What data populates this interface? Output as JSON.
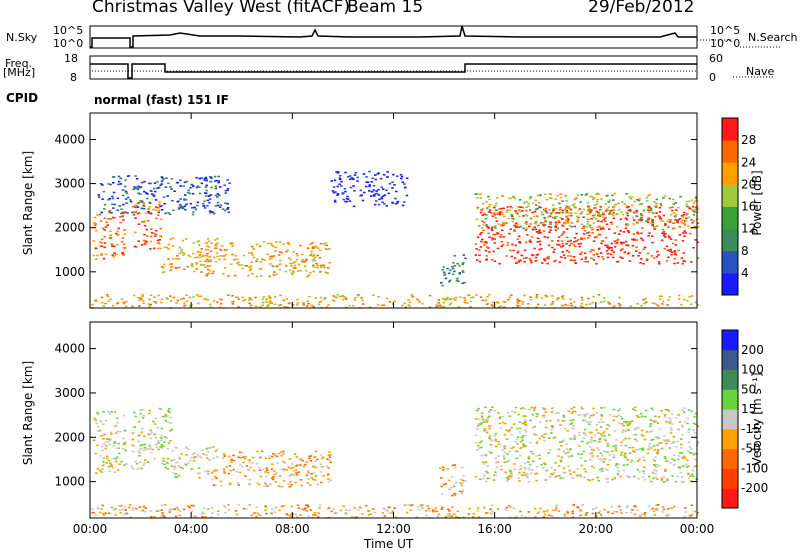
{
  "header": {
    "station": "Christmas Valley West (fitACF)",
    "beam": "Beam 15",
    "date": "29/Feb/2012"
  },
  "panels": {
    "nsky_label": "N.Sky",
    "nsky_ticks": [
      "10^5",
      "10^0"
    ],
    "nsearch_label": "N.Search",
    "nsearch_ticks": [
      "10^5",
      "10^0"
    ],
    "freq_label_1": "Freq.",
    "freq_label_2": "[MHz]",
    "freq_ticks": [
      "18",
      "8"
    ],
    "nave_label": "Nave",
    "nave_ticks": [
      "60",
      "0"
    ],
    "cpid_label": "CPID",
    "cpid_value": "normal (fast) 151 IF"
  },
  "chart_data": [
    {
      "type": "heatmap",
      "name": "power",
      "ylabel": "Slant Range [km]",
      "xlabel": "Time UT",
      "xlim": [
        0,
        24
      ],
      "ylim": [
        180,
        4600
      ],
      "x_ticks": [
        "00:00",
        "04:00",
        "08:00",
        "12:00",
        "16:00",
        "20:00",
        "00:00"
      ],
      "y_ticks": [
        1000,
        2000,
        3000,
        4000
      ],
      "colorbar": {
        "label": "Power [dB]",
        "ticks": [
          "4",
          "8",
          "12",
          "16",
          "20",
          "24",
          "28"
        ],
        "colors": [
          "#1a1aff",
          "#2a52be",
          "#3c8c5a",
          "#3aa03a",
          "#a0c83c",
          "#ff9f00",
          "#ff6a00",
          "#ff1a1a"
        ]
      },
      "regions": [
        {
          "t": [
            0.1,
            1.4
          ],
          "r": [
            1300,
            2400
          ],
          "level": 6
        },
        {
          "t": [
            1.6,
            2.8
          ],
          "r": [
            1500,
            2600
          ],
          "level": 6
        },
        {
          "t": [
            2.8,
            5.0
          ],
          "r": [
            1000,
            1800
          ],
          "level": 5
        },
        {
          "t": [
            4.5,
            9.5
          ],
          "r": [
            900,
            1700
          ],
          "level": 5
        },
        {
          "t": [
            0.3,
            5.5
          ],
          "r": [
            2300,
            3200
          ],
          "level": 1
        },
        {
          "t": [
            9.5,
            12.5
          ],
          "r": [
            2500,
            3300
          ],
          "level": 0
        },
        {
          "t": [
            13.8,
            14.8
          ],
          "r": [
            700,
            1400
          ],
          "level": 2
        },
        {
          "t": [
            15.2,
            24
          ],
          "r": [
            1200,
            2500
          ],
          "level": 7
        },
        {
          "t": [
            15.2,
            24
          ],
          "r": [
            2000,
            2800
          ],
          "level": 4
        },
        {
          "t": [
            0,
            24
          ],
          "r": [
            200,
            500
          ],
          "level": 5
        }
      ]
    },
    {
      "type": "heatmap",
      "name": "velocity",
      "ylabel": "Slant Range [km]",
      "xlabel": "Time UT",
      "xlim": [
        0,
        24
      ],
      "ylim": [
        180,
        4600
      ],
      "x_ticks": [
        "00:00",
        "04:00",
        "08:00",
        "12:00",
        "16:00",
        "20:00",
        "00:00"
      ],
      "y_ticks": [
        1000,
        2000,
        3000,
        4000
      ],
      "colorbar": {
        "label": "Velocity [m s⁻¹]",
        "ticks": [
          "200",
          "100",
          "50",
          "15",
          "-15",
          "-50",
          "-100",
          "-200"
        ],
        "colors": [
          "#1a1aff",
          "#3c5a8c",
          "#3c8c5a",
          "#6ad23c",
          "#c8c8c8",
          "#ff9f00",
          "#ff6a00",
          "#ff4000",
          "#ff1a1a"
        ]
      },
      "regions": [
        {
          "t": [
            0.1,
            1.4
          ],
          "r": [
            1200,
            2600
          ],
          "level": 4
        },
        {
          "t": [
            1.6,
            3.2
          ],
          "r": [
            1300,
            2700
          ],
          "level": 4
        },
        {
          "t": [
            3.2,
            5.0
          ],
          "r": [
            1100,
            1800
          ],
          "level": 4
        },
        {
          "t": [
            4.8,
            9.5
          ],
          "r": [
            900,
            1700
          ],
          "level": 5
        },
        {
          "t": [
            13.8,
            14.8
          ],
          "r": [
            700,
            1400
          ],
          "level": 5
        },
        {
          "t": [
            15.2,
            24
          ],
          "r": [
            1000,
            2700
          ],
          "level": 4
        },
        {
          "t": [
            0,
            24
          ],
          "r": [
            200,
            500
          ],
          "level": 5
        }
      ]
    }
  ]
}
